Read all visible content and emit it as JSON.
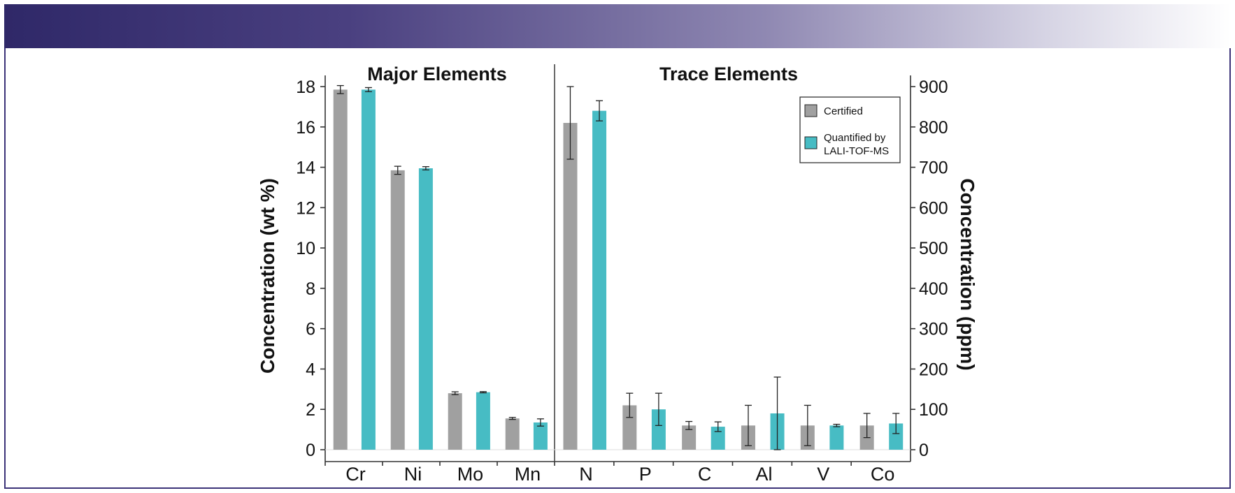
{
  "chart_data": {
    "type": "bar",
    "panels": [
      {
        "title": "Major Elements",
        "ylabel": "Concentration (wt %)",
        "ylim": [
          0,
          18
        ],
        "yticks": [
          0,
          2,
          4,
          6,
          8,
          10,
          12,
          14,
          16,
          18
        ],
        "categories": [
          "Cr",
          "Ni",
          "Mo",
          "Mn"
        ],
        "series": [
          {
            "name": "Certified",
            "values": [
              17.85,
              13.85,
              2.8,
              1.55
            ],
            "errors": [
              0.2,
              0.2,
              0.07,
              0.05
            ]
          },
          {
            "name": "Quantified by LALI-TOF-MS",
            "values": [
              17.85,
              13.95,
              2.85,
              1.35
            ],
            "errors": [
              0.1,
              0.08,
              0.03,
              0.18
            ]
          }
        ]
      },
      {
        "title": "Trace Elements",
        "ylabel": "Concentration (ppm)",
        "ylim": [
          0,
          900
        ],
        "yticks": [
          0,
          100,
          200,
          300,
          400,
          500,
          600,
          700,
          800,
          900
        ],
        "categories": [
          "N",
          "P",
          "C",
          "Al",
          "V",
          "Co"
        ],
        "series": [
          {
            "name": "Certified",
            "values": [
              810,
              110,
              60,
              60,
              60,
              60
            ],
            "errors": [
              90,
              30,
              10,
              50,
              50,
              30
            ]
          },
          {
            "name": "Quantified by LALI-TOF-MS",
            "values": [
              840,
              100,
              57,
              90,
              60,
              65
            ],
            "errors": [
              25,
              40,
              12,
              90,
              3,
              25
            ]
          }
        ]
      }
    ],
    "legend": {
      "entries": [
        "Certified",
        "Quantified by",
        "LALI-TOF-MS"
      ],
      "placement": "top-right"
    },
    "colors": {
      "certified": "#a0a0a0",
      "quantified": "#47bcc4"
    }
  }
}
